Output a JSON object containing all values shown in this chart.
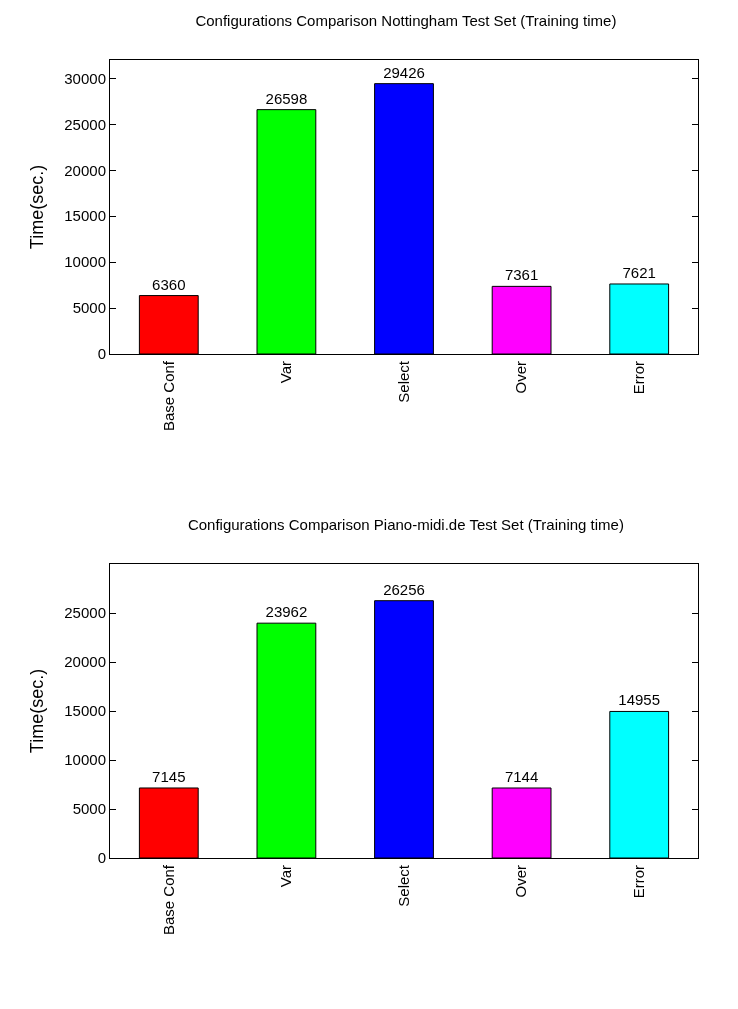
{
  "chart_data": [
    {
      "type": "bar",
      "title": "Configurations Comparison Nottingham Test Set (Training time)",
      "ylabel": "Time(sec.)",
      "categories": [
        "Base Conf",
        "Var",
        "Select",
        "Over",
        "Error"
      ],
      "values": [
        6360,
        26598,
        29426,
        7361,
        7621
      ],
      "colors": [
        "#ff0000",
        "#00ff00",
        "#0000ff",
        "#ff00ff",
        "#00ffff"
      ],
      "ylim": [
        0,
        32000
      ],
      "yticks": [
        0,
        5000,
        10000,
        15000,
        20000,
        25000,
        30000
      ],
      "data_labels": true
    },
    {
      "type": "bar",
      "title": "Configurations Comparison Piano-midi.de Test Set (Training time)",
      "ylabel": "Time(sec.)",
      "categories": [
        "Base Conf",
        "Var",
        "Select",
        "Over",
        "Error"
      ],
      "values": [
        7145,
        23962,
        26256,
        7144,
        14955
      ],
      "colors": [
        "#ff0000",
        "#00ff00",
        "#0000ff",
        "#ff00ff",
        "#00ffff"
      ],
      "ylim": [
        0,
        30000
      ],
      "yticks": [
        0,
        5000,
        10000,
        15000,
        20000,
        25000
      ],
      "data_labels": true
    }
  ]
}
